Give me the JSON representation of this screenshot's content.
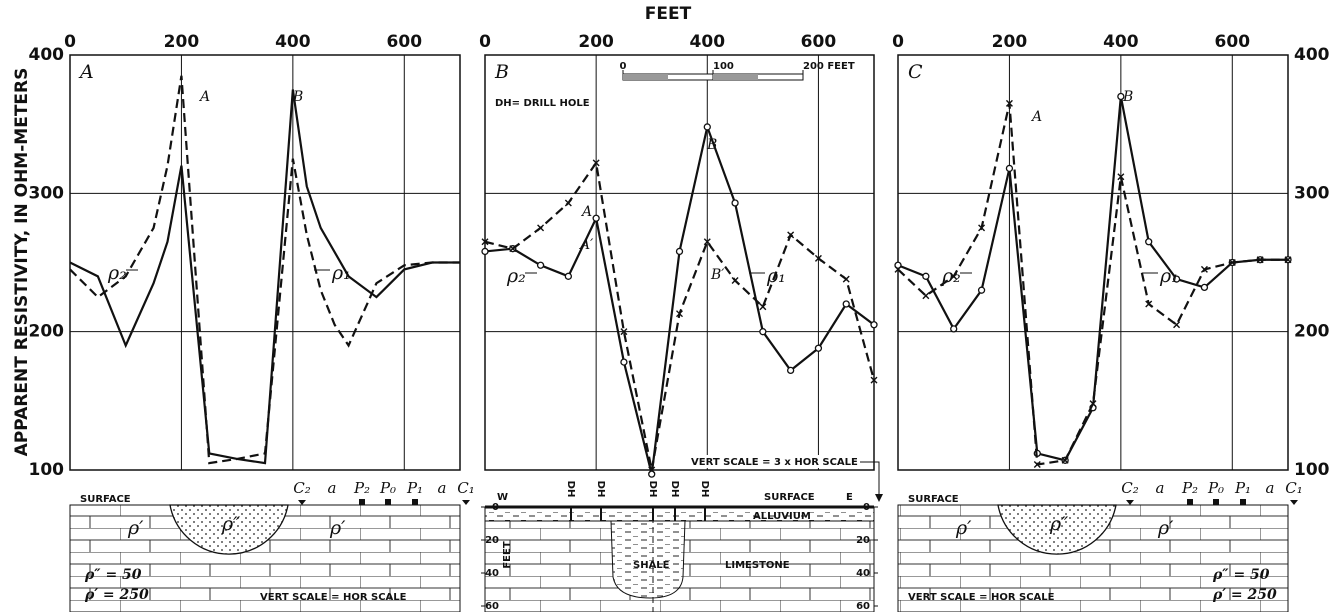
{
  "figure": {
    "x_label": "FEET",
    "y_label": "APPARENT RESISTIVITY, IN OHM-METERS"
  },
  "chart_data": [
    {
      "type": "line",
      "title": "A",
      "xlim": [
        0,
        700
      ],
      "xticks": [
        0,
        200,
        400,
        600
      ],
      "ylim": [
        100,
        400
      ],
      "yticks": [
        100,
        200,
        300,
        400
      ],
      "ytick_labels": "left",
      "grid": true,
      "markers": false,
      "series": [
        {
          "name": "ρ₁",
          "color": "#111111",
          "dash": "solid",
          "x": [
            0,
            50,
            100,
            150,
            175,
            200,
            250,
            300,
            350,
            400,
            425,
            450,
            500,
            550,
            600,
            650,
            700
          ],
          "values": [
            250,
            240,
            190,
            235,
            265,
            320,
            112,
            108,
            105,
            375,
            305,
            275,
            240,
            225,
            245,
            250,
            250
          ]
        },
        {
          "name": "ρ₂",
          "color": "#111111",
          "dash": "dashed",
          "x": [
            0,
            50,
            100,
            150,
            175,
            200,
            250,
            300,
            350,
            400,
            425,
            450,
            475,
            500,
            550,
            600,
            650,
            700
          ],
          "values": [
            245,
            225,
            240,
            275,
            320,
            385,
            105,
            108,
            112,
            325,
            270,
            230,
            205,
            190,
            235,
            248,
            250,
            250
          ]
        }
      ],
      "annotations": [
        "A",
        "B"
      ]
    },
    {
      "type": "line",
      "title": "B",
      "xlim": [
        0,
        700
      ],
      "xticks": [
        0,
        200,
        400,
        600
      ],
      "ylim": [
        100,
        400
      ],
      "yticks": [
        100,
        200,
        300,
        400
      ],
      "ytick_labels": "none",
      "grid": true,
      "markers": true,
      "series": [
        {
          "name": "ρ₁",
          "color": "#111111",
          "dash": "solid",
          "x": [
            0,
            50,
            100,
            150,
            200,
            250,
            300,
            350,
            400,
            450,
            500,
            550,
            600,
            650,
            700
          ],
          "values": [
            258,
            260,
            248,
            240,
            282,
            178,
            97,
            258,
            348,
            293,
            200,
            172,
            188,
            220,
            205
          ]
        },
        {
          "name": "ρ₂",
          "color": "#111111",
          "dash": "dashed",
          "x": [
            0,
            50,
            100,
            150,
            200,
            250,
            300,
            350,
            400,
            450,
            500,
            550,
            600,
            650,
            700
          ],
          "values": [
            265,
            260,
            275,
            293,
            322,
            200,
            100,
            213,
            265,
            237,
            218,
            270,
            253,
            238,
            165
          ]
        }
      ],
      "annotations": [
        "A",
        "B",
        "A′",
        "B′"
      ],
      "scale_bar": [
        0,
        100,
        {
          "value": 200,
          "label": "200 FEET"
        }
      ],
      "note": "DH= DRILL HOLE"
    },
    {
      "type": "line",
      "title": "C",
      "xlim": [
        0,
        700
      ],
      "xticks": [
        0,
        200,
        400,
        600
      ],
      "ylim": [
        100,
        400
      ],
      "yticks": [
        100,
        200,
        300,
        400
      ],
      "ytick_labels": "right",
      "grid": true,
      "markers": true,
      "series": [
        {
          "name": "ρ₁",
          "color": "#111111",
          "dash": "solid",
          "x": [
            0,
            50,
            100,
            150,
            200,
            250,
            300,
            350,
            400,
            450,
            500,
            550,
            600,
            650,
            700
          ],
          "values": [
            248,
            240,
            202,
            230,
            318,
            112,
            107,
            145,
            370,
            265,
            238,
            232,
            250,
            252,
            252
          ]
        },
        {
          "name": "ρ₂",
          "color": "#111111",
          "dash": "dashed",
          "x": [
            0,
            50,
            100,
            150,
            200,
            250,
            300,
            350,
            400,
            450,
            500,
            550,
            600,
            650,
            700
          ],
          "values": [
            245,
            226,
            240,
            275,
            365,
            104,
            107,
            148,
            312,
            220,
            205,
            245,
            250,
            252,
            252
          ]
        }
      ],
      "annotations": [
        "A",
        "B"
      ]
    }
  ],
  "sections": [
    {
      "surface": "SURFACE",
      "electrodes": [
        "C₂",
        "a",
        "P₂",
        "P₀",
        "P₁",
        "a",
        "C₁"
      ],
      "rho_outer": "ρ′",
      "rho_inner": "ρ″",
      "legend": [
        "ρ″ = 50",
        "ρ′ = 250"
      ],
      "scale": "VERT SCALE = HOR SCALE"
    },
    {
      "ends": [
        "W",
        "E"
      ],
      "surface": "SURFACE",
      "drill_holes": [
        "DH",
        "DH",
        "DH",
        "DH",
        "DH"
      ],
      "layers": [
        "ALLUVIUM",
        "SHALE",
        "LIMESTONE"
      ],
      "depth_label": "FEET",
      "depth_ticks": [
        0,
        20,
        40,
        60
      ],
      "scale": "VERT SCALE = 3 x HOR SCALE"
    },
    {
      "surface": "SURFACE",
      "electrodes": [
        "C₂",
        "a",
        "P₂",
        "P₀",
        "P₁",
        "a",
        "C₁"
      ],
      "rho_outer": "ρ′",
      "rho_inner": "ρ″",
      "legend": [
        "ρ″ = 50",
        "ρ′ = 250"
      ],
      "scale": "VERT SCALE = HOR SCALE"
    }
  ]
}
